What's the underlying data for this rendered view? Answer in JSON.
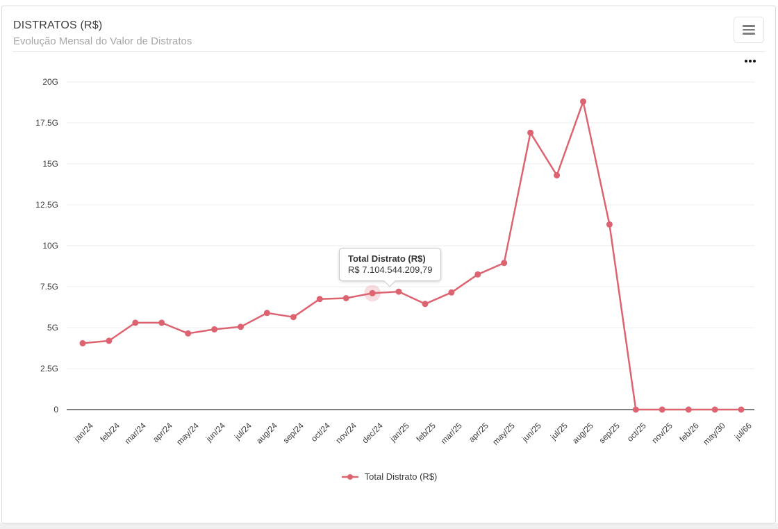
{
  "header": {
    "title": "DISTRATOS (R$)",
    "subtitle": "Evolução Mensal do Valor de Distratos",
    "menu_button_icon": "hamburger-menu-icon",
    "options_icon": "ellipsis-icon"
  },
  "tooltip": {
    "title": "Total Distrato (R$)",
    "value": "R$ 7.104.544.209,79"
  },
  "legend": {
    "items": [
      {
        "label": "Total Distrato (R$)",
        "color": "#dd6370",
        "marker": "line-dot"
      }
    ]
  },
  "colors": {
    "line": "#dd6370",
    "halo": "#dd6370",
    "grid": "#ededed",
    "axis_line": "#555555",
    "tick_label": "#3b3b3b",
    "title": "#3d3d3d",
    "subtitle": "#a6a6a6",
    "card_border": "#d8d8d8",
    "page_strip": "#efefef"
  },
  "chart_data": {
    "type": "line",
    "title": "DISTRATOS (R$)",
    "subtitle": "Evolução Mensal do Valor de Distratos",
    "categories": [
      "jan/24",
      "feb/24",
      "mar/24",
      "apr/24",
      "may/24",
      "jun/24",
      "jul/24",
      "aug/24",
      "sep/24",
      "oct/24",
      "nov/24",
      "dec/24",
      "jan/25",
      "feb/25",
      "mar/25",
      "apr/25",
      "may/25",
      "jun/25",
      "jul/25",
      "aug/25",
      "sep/25",
      "oct/25",
      "nov/25",
      "feb/26",
      "may/30",
      "jul/66"
    ],
    "series": [
      {
        "name": "Total Distrato (R$)",
        "color": "#dd6370",
        "values_billions": [
          4.05,
          4.2,
          5.3,
          5.3,
          4.65,
          4.9,
          5.05,
          5.9,
          5.65,
          6.75,
          6.8,
          7.1045,
          7.2,
          6.45,
          7.15,
          8.25,
          8.95,
          16.9,
          14.3,
          18.8,
          11.3,
          0,
          0,
          0,
          0,
          0
        ]
      }
    ],
    "ylim": [
      0,
      20
    ],
    "yticks_billions": [
      0,
      2.5,
      5,
      7.5,
      10,
      12.5,
      15,
      17.5,
      20
    ],
    "ytick_suffix": "G",
    "xlabel": "",
    "ylabel": "",
    "grid": "horizontal",
    "legend_position": "bottom",
    "highlighted_point": {
      "index": 11,
      "category": "dec/24",
      "exact_value_label": "R$ 7.104.544.209,79"
    }
  }
}
